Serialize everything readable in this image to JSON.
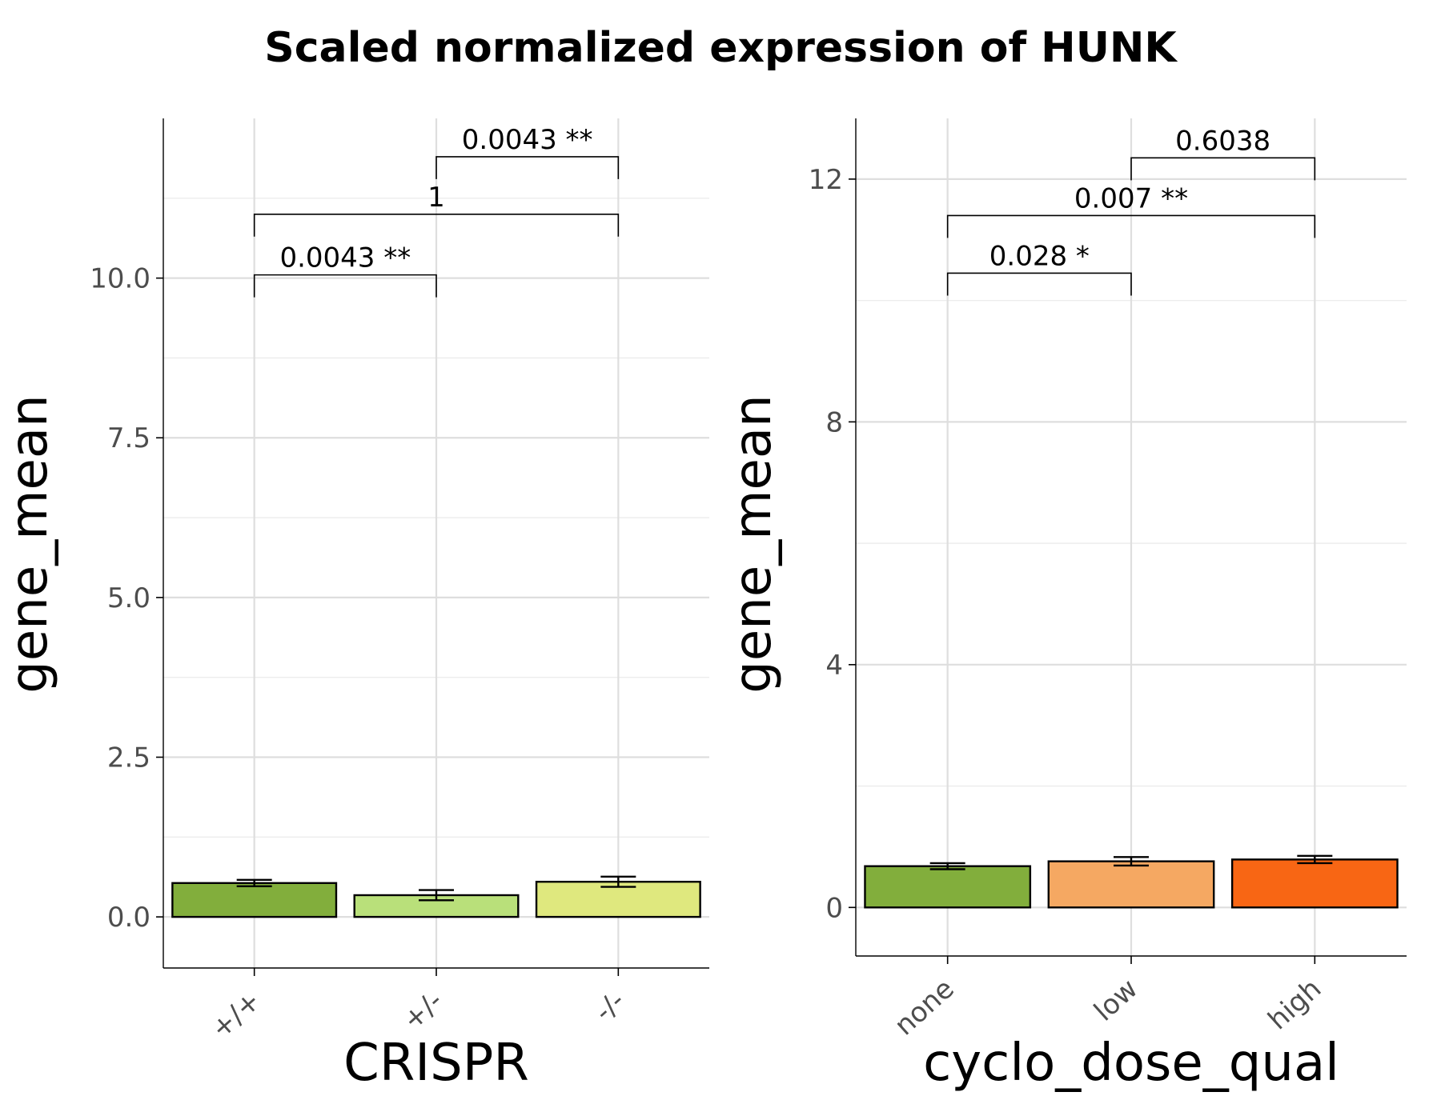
{
  "title": "Scaled normalized expression of HUNK",
  "chart_data": [
    {
      "type": "bar",
      "xlabel": "CRISPR",
      "ylabel": "gene_mean",
      "categories": [
        "+/+",
        "+/-",
        "-/-"
      ],
      "values": [
        0.53,
        0.34,
        0.55
      ],
      "errors": [
        0.05,
        0.08,
        0.08
      ],
      "colors": [
        "#82ae3c",
        "#b9e07a",
        "#dfe87e"
      ],
      "ylim": [
        -0.8,
        12.5
      ],
      "yticks": [
        0.0,
        2.5,
        5.0,
        7.5,
        10.0
      ],
      "ytick_labels": [
        "0.0",
        "2.5",
        "5.0",
        "7.5",
        "10.0"
      ],
      "comparisons": [
        {
          "from": 0,
          "to": 1,
          "y": 10.05,
          "label": "0.0043 **"
        },
        {
          "from": 0,
          "to": 2,
          "y": 11.0,
          "label": "1"
        },
        {
          "from": 1,
          "to": 2,
          "y": 11.9,
          "label": "0.0043 **"
        }
      ],
      "grid": true
    },
    {
      "type": "bar",
      "xlabel": "cyclo_dose_qual",
      "ylabel": "gene_mean",
      "categories": [
        "none",
        "low",
        "high"
      ],
      "values": [
        0.68,
        0.76,
        0.79
      ],
      "errors": [
        0.05,
        0.07,
        0.06
      ],
      "colors": [
        "#82ae3c",
        "#f5a862",
        "#f86614"
      ],
      "ylim": [
        -0.8,
        13.0
      ],
      "yticks": [
        0,
        4,
        8,
        12
      ],
      "ytick_labels": [
        "0",
        "4",
        "8",
        "12"
      ],
      "comparisons": [
        {
          "from": 0,
          "to": 1,
          "y": 10.45,
          "label": "0.028 *"
        },
        {
          "from": 0,
          "to": 2,
          "y": 11.4,
          "label": "0.007 **"
        },
        {
          "from": 1,
          "to": 2,
          "y": 12.35,
          "label": "0.6038"
        }
      ],
      "grid": true
    }
  ]
}
